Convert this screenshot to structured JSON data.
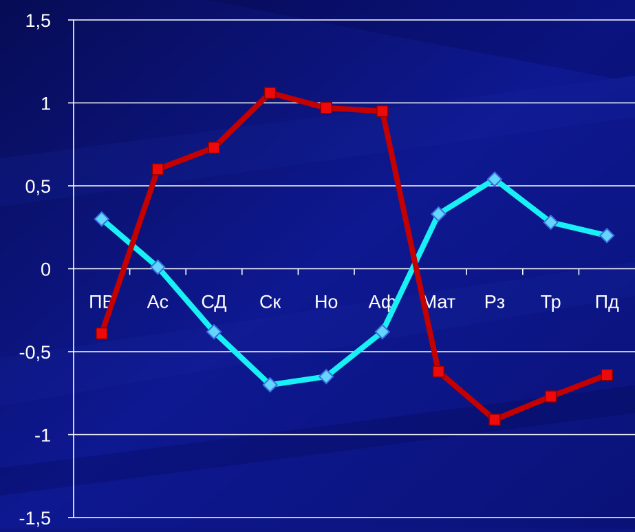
{
  "chart_data": {
    "type": "line",
    "categories": [
      "ПВ",
      "Ас",
      "СД",
      "Ск",
      "Но",
      "Аф",
      "Мат",
      "Рз",
      "Тр",
      "Пд"
    ],
    "series": [
      {
        "values": [
          0.3,
          0.01,
          -0.38,
          -0.7,
          -0.65,
          -0.38,
          0.33,
          0.54,
          0.28,
          0.2
        ],
        "color": "#19f0f5",
        "marker": "diamond"
      },
      {
        "values": [
          -0.39,
          0.6,
          0.73,
          1.06,
          0.97,
          0.95,
          -0.62,
          -0.91,
          -0.77,
          -0.64
        ],
        "color": "#c40000",
        "marker": "square"
      }
    ],
    "yticks": [
      "1,5",
      "1",
      "0,5",
      "0",
      "-0,5",
      "-1",
      "-1,5"
    ],
    "ylim": [
      -1.5,
      1.5
    ],
    "grid": true,
    "legend": "none"
  },
  "colors": {
    "background": "#0d1580",
    "grid": "#ffffff",
    "text": "#ffffff"
  }
}
